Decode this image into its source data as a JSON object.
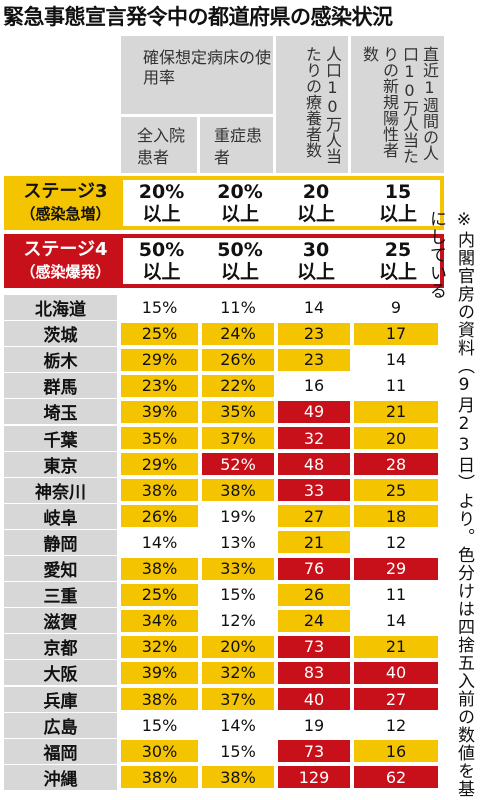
{
  "title": "緊急事態宣言発令中の都道府県の感染状況",
  "headers": {
    "bed_usage": "確保想定病床の使用率",
    "inpatients": "全入院患者",
    "severe": "重症患者",
    "recuperating": "人口10万人当たりの療養者数",
    "new_positive": "直近1週間の人口10万人当たりの新規陽性者数"
  },
  "stages": [
    {
      "label": "ステージ3",
      "sub": "（感染急増）",
      "values": [
        "20%",
        "20%",
        "20",
        "15"
      ],
      "suffix": "以上"
    },
    {
      "label": "ステージ4",
      "sub": "（感染爆発）",
      "values": [
        "50%",
        "50%",
        "30",
        "25"
      ],
      "suffix": "以上"
    }
  ],
  "note": "※内閣官房の資料（9月23日）より。色分けは四捨五入前の数値を基にしている",
  "colors": {
    "stage3": "#f5c400",
    "stage4": "#c8101a",
    "header": "#d7d7d7"
  },
  "chart_data": {
    "type": "table",
    "title": "緊急事態宣言発令中の都道府県の感染状況",
    "columns": [
      "全入院患者",
      "重症患者",
      "人口10万人当たりの療養者数",
      "直近1週間の人口10万人当たりの新規陽性者数"
    ],
    "rows": [
      {
        "pref": "北海道",
        "values": [
          "15%",
          "11%",
          "14",
          "9"
        ],
        "levels": [
          "n",
          "n",
          "n",
          "n"
        ]
      },
      {
        "pref": "茨城",
        "values": [
          "25%",
          "24%",
          "23",
          "17"
        ],
        "levels": [
          "y",
          "y",
          "y",
          "y"
        ]
      },
      {
        "pref": "栃木",
        "values": [
          "29%",
          "26%",
          "23",
          "14"
        ],
        "levels": [
          "y",
          "y",
          "y",
          "n"
        ]
      },
      {
        "pref": "群馬",
        "values": [
          "23%",
          "22%",
          "16",
          "11"
        ],
        "levels": [
          "y",
          "y",
          "n",
          "n"
        ]
      },
      {
        "pref": "埼玉",
        "values": [
          "39%",
          "35%",
          "49",
          "21"
        ],
        "levels": [
          "y",
          "y",
          "r",
          "y"
        ]
      },
      {
        "pref": "千葉",
        "values": [
          "35%",
          "37%",
          "32",
          "20"
        ],
        "levels": [
          "y",
          "y",
          "r",
          "y"
        ]
      },
      {
        "pref": "東京",
        "values": [
          "29%",
          "52%",
          "48",
          "28"
        ],
        "levels": [
          "y",
          "r",
          "r",
          "r"
        ]
      },
      {
        "pref": "神奈川",
        "values": [
          "38%",
          "38%",
          "33",
          "25"
        ],
        "levels": [
          "y",
          "y",
          "r",
          "y"
        ]
      },
      {
        "pref": "岐阜",
        "values": [
          "26%",
          "19%",
          "27",
          "18"
        ],
        "levels": [
          "y",
          "n",
          "y",
          "y"
        ]
      },
      {
        "pref": "静岡",
        "values": [
          "14%",
          "13%",
          "21",
          "12"
        ],
        "levels": [
          "n",
          "n",
          "y",
          "n"
        ]
      },
      {
        "pref": "愛知",
        "values": [
          "38%",
          "33%",
          "76",
          "29"
        ],
        "levels": [
          "y",
          "y",
          "r",
          "r"
        ]
      },
      {
        "pref": "三重",
        "values": [
          "25%",
          "15%",
          "26",
          "11"
        ],
        "levels": [
          "y",
          "n",
          "y",
          "n"
        ]
      },
      {
        "pref": "滋賀",
        "values": [
          "34%",
          "12%",
          "24",
          "14"
        ],
        "levels": [
          "y",
          "n",
          "y",
          "n"
        ]
      },
      {
        "pref": "京都",
        "values": [
          "32%",
          "20%",
          "73",
          "21"
        ],
        "levels": [
          "y",
          "y",
          "r",
          "y"
        ]
      },
      {
        "pref": "大阪",
        "values": [
          "39%",
          "32%",
          "83",
          "40"
        ],
        "levels": [
          "y",
          "y",
          "r",
          "r"
        ]
      },
      {
        "pref": "兵庫",
        "values": [
          "38%",
          "37%",
          "40",
          "27"
        ],
        "levels": [
          "y",
          "y",
          "r",
          "r"
        ]
      },
      {
        "pref": "広島",
        "values": [
          "15%",
          "14%",
          "19",
          "12"
        ],
        "levels": [
          "n",
          "n",
          "n",
          "n"
        ]
      },
      {
        "pref": "福岡",
        "values": [
          "30%",
          "15%",
          "73",
          "16"
        ],
        "levels": [
          "y",
          "n",
          "r",
          "y"
        ]
      },
      {
        "pref": "沖縄",
        "values": [
          "38%",
          "38%",
          "129",
          "62"
        ],
        "levels": [
          "y",
          "y",
          "r",
          "r"
        ]
      }
    ]
  }
}
